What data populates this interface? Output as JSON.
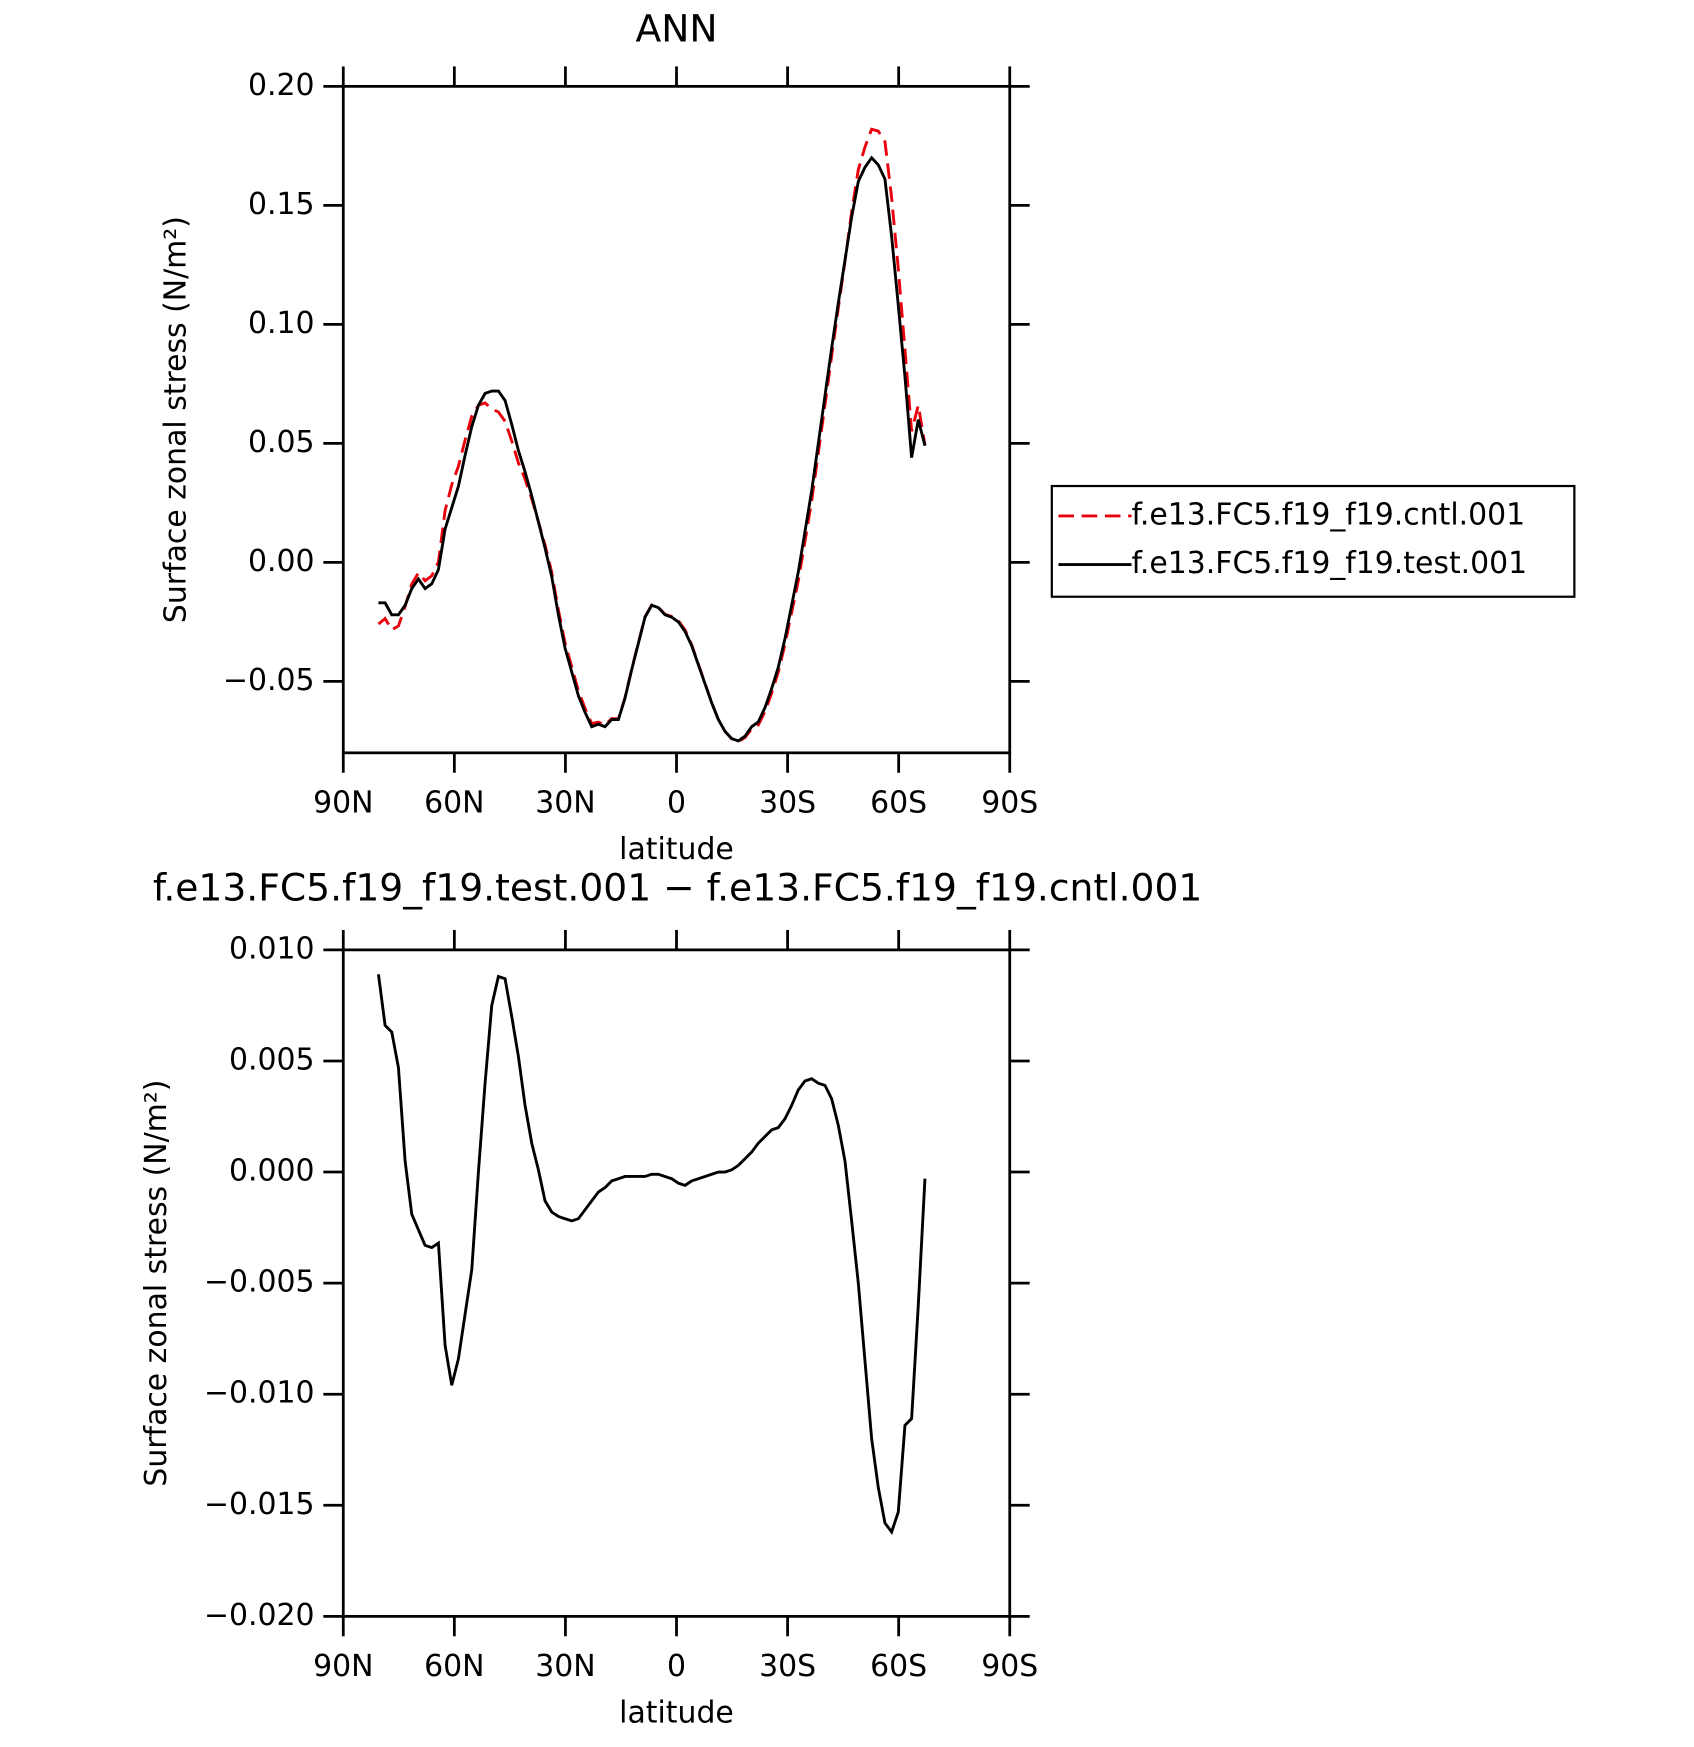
{
  "chart_data": [
    {
      "type": "line",
      "title": "ANN",
      "xlabel": "latitude",
      "ylabel": "Surface zonal stress (N/m²)",
      "x": [
        80.5,
        78.7,
        76.9,
        75.1,
        73.3,
        71.5,
        69.7,
        67.9,
        66.1,
        64.3,
        62.5,
        60.7,
        58.9,
        57.1,
        55.3,
        53.5,
        51.7,
        49.9,
        48.1,
        46.3,
        44.5,
        42.7,
        40.9,
        39.1,
        37.3,
        35.5,
        33.7,
        31.9,
        30.1,
        28.3,
        26.5,
        24.7,
        22.9,
        21.1,
        19.3,
        17.5,
        15.7,
        13.9,
        12.1,
        10.3,
        8.5,
        6.7,
        4.9,
        3.1,
        1.3,
        -0.5,
        -2.3,
        -4.1,
        -5.9,
        -7.7,
        -9.5,
        -11.3,
        -13.1,
        -14.9,
        -16.7,
        -18.5,
        -20.3,
        -22.1,
        -23.9,
        -25.7,
        -27.5,
        -29.3,
        -31.1,
        -32.9,
        -34.7,
        -36.5,
        -38.3,
        -40.1,
        -41.9,
        -43.7,
        -45.5,
        -47.3,
        -49.1,
        -50.9,
        -52.7,
        -54.5,
        -56.3,
        -58.1,
        -59.9,
        -61.7,
        -63.5,
        -65.3,
        -67.1
      ],
      "series": [
        {
          "name": "f.e13.FC5.f19_f19.cntl.001",
          "color": "#e8000b",
          "line_style": "dashed",
          "values": [
            -0.0259,
            -0.0236,
            -0.0283,
            -0.0267,
            -0.0185,
            -0.0091,
            -0.0044,
            -0.0077,
            -0.0056,
            0.0002,
            0.0218,
            0.0326,
            0.0404,
            0.0514,
            0.0614,
            0.066,
            0.067,
            0.0645,
            0.0632,
            0.0593,
            0.051,
            0.0418,
            0.035,
            0.0267,
            0.0171,
            0.0073,
            -0.0042,
            -0.02,
            -0.0339,
            -0.0438,
            -0.0539,
            -0.0613,
            -0.0677,
            -0.0671,
            -0.0683,
            -0.0656,
            -0.0657,
            -0.0568,
            -0.0448,
            -0.0338,
            -0.0228,
            -0.0179,
            -0.0189,
            -0.0218,
            -0.0227,
            -0.0245,
            -0.0284,
            -0.0346,
            -0.0427,
            -0.0508,
            -0.0589,
            -0.066,
            -0.071,
            -0.0741,
            -0.0753,
            -0.0736,
            -0.0699,
            -0.0683,
            -0.0626,
            -0.0549,
            -0.046,
            -0.0344,
            -0.021,
            -0.0077,
            0.0089,
            0.0258,
            0.046,
            0.0661,
            0.0867,
            0.1069,
            0.1265,
            0.1472,
            0.165,
            0.1745,
            0.182,
            0.1812,
            0.1768,
            0.1532,
            0.1233,
            0.0894,
            0.0551,
            0.066,
            0.0493
          ]
        },
        {
          "name": "f.e13.FC5.f19_f19.test.001",
          "color": "#000000",
          "line_style": "solid",
          "values": [
            -0.017,
            -0.017,
            -0.022,
            -0.022,
            -0.018,
            -0.011,
            -0.007,
            -0.011,
            -0.009,
            -0.003,
            0.014,
            0.023,
            0.032,
            0.045,
            0.057,
            0.066,
            0.071,
            0.072,
            0.072,
            0.068,
            0.058,
            0.047,
            0.038,
            0.028,
            0.017,
            0.006,
            -0.006,
            -0.022,
            -0.036,
            -0.046,
            -0.056,
            -0.063,
            -0.069,
            -0.068,
            -0.069,
            -0.066,
            -0.066,
            -0.057,
            -0.045,
            -0.034,
            -0.023,
            -0.018,
            -0.019,
            -0.022,
            -0.023,
            -0.025,
            -0.029,
            -0.035,
            -0.043,
            -0.051,
            -0.059,
            -0.066,
            -0.071,
            -0.074,
            -0.075,
            -0.073,
            -0.069,
            -0.067,
            -0.061,
            -0.053,
            -0.044,
            -0.032,
            -0.018,
            -0.004,
            0.013,
            0.03,
            0.05,
            0.07,
            0.09,
            0.109,
            0.127,
            0.145,
            0.16,
            0.166,
            0.17,
            0.167,
            0.161,
            0.137,
            0.108,
            0.078,
            0.044,
            0.06,
            0.049
          ]
        }
      ],
      "xlim": [
        90,
        -90
      ],
      "xticks": [
        {
          "value": 90,
          "label": "90N"
        },
        {
          "value": 60,
          "label": "60N"
        },
        {
          "value": 30,
          "label": "30N"
        },
        0,
        {
          "value": -30,
          "label": "30S"
        },
        {
          "value": -60,
          "label": "60S"
        },
        {
          "value": -90,
          "label": "90S"
        }
      ],
      "ylim": [
        -0.08,
        0.2
      ],
      "yticks": [
        {
          "value": 0.2,
          "label": "0.20"
        },
        {
          "value": 0.15,
          "label": "0.15"
        },
        {
          "value": 0.1,
          "label": "0.10"
        },
        {
          "value": 0.05,
          "label": "0.05"
        },
        {
          "value": 0,
          "label": "0.00"
        },
        {
          "value": -0.05,
          "label": "−0.05"
        }
      ],
      "legend": "right"
    },
    {
      "type": "line",
      "title": "f.e13.FC5.f19_f19.test.001 − f.e13.FC5.f19_f19.cntl.001",
      "xlabel": "latitude",
      "ylabel": "Surface zonal stress (N/m²)",
      "x": [
        80.5,
        78.7,
        76.9,
        75.1,
        73.3,
        71.5,
        69.7,
        67.9,
        66.1,
        64.3,
        62.5,
        60.7,
        58.9,
        57.1,
        55.3,
        53.5,
        51.7,
        49.9,
        48.1,
        46.3,
        44.5,
        42.7,
        40.9,
        39.1,
        37.3,
        35.5,
        33.7,
        31.9,
        30.1,
        28.3,
        26.5,
        24.7,
        22.9,
        21.1,
        19.3,
        17.5,
        15.7,
        13.9,
        12.1,
        10.3,
        8.5,
        6.7,
        4.9,
        3.1,
        1.3,
        -0.5,
        -2.3,
        -4.1,
        -5.9,
        -7.7,
        -9.5,
        -11.3,
        -13.1,
        -14.9,
        -16.7,
        -18.5,
        -20.3,
        -22.1,
        -23.9,
        -25.7,
        -27.5,
        -29.3,
        -31.1,
        -32.9,
        -34.7,
        -36.5,
        -38.3,
        -40.1,
        -41.9,
        -43.7,
        -45.5,
        -47.3,
        -49.1,
        -50.9,
        -52.7,
        -54.5,
        -56.3,
        -58.1,
        -59.9,
        -61.7,
        -63.5,
        -65.3,
        -67.1
      ],
      "series": [
        {
          "color": "#000000",
          "line_style": "solid",
          "values": [
            0.0089,
            0.0066,
            0.0063,
            0.0047,
            0.0005,
            -0.0019,
            -0.0026,
            -0.0033,
            -0.0034,
            -0.0032,
            -0.0078,
            -0.0096,
            -0.0084,
            -0.0064,
            -0.0044,
            0.0,
            0.004,
            0.0075,
            0.0088,
            0.0087,
            0.007,
            0.0052,
            0.003,
            0.0013,
            0.0001,
            -0.0013,
            -0.0018,
            -0.002,
            -0.0021,
            -0.0022,
            -0.0021,
            -0.0017,
            -0.0013,
            -0.0009,
            -0.0007,
            -0.0004,
            -0.0003,
            -0.0002,
            -0.0002,
            -0.0002,
            -0.0002,
            -0.0001,
            -0.0001,
            -0.0002,
            -0.0003,
            -0.0005,
            -0.0006,
            -0.0004,
            -0.0003,
            -0.0002,
            -0.0001,
            0.0,
            0.0,
            0.0001,
            0.0003,
            0.0006,
            0.0009,
            0.0013,
            0.0016,
            0.0019,
            0.002,
            0.0024,
            0.003,
            0.0037,
            0.0041,
            0.0042,
            0.004,
            0.0039,
            0.0033,
            0.0021,
            0.0005,
            -0.0022,
            -0.005,
            -0.0085,
            -0.012,
            -0.0142,
            -0.0158,
            -0.0162,
            -0.0153,
            -0.0114,
            -0.0111,
            -0.006,
            -0.0003
          ]
        }
      ],
      "xlim": [
        90,
        -90
      ],
      "xticks": [
        {
          "value": 90,
          "label": "90N"
        },
        {
          "value": 60,
          "label": "60N"
        },
        {
          "value": 30,
          "label": "30N"
        },
        0,
        {
          "value": -30,
          "label": "30S"
        },
        {
          "value": -60,
          "label": "60S"
        },
        {
          "value": -90,
          "label": "90S"
        }
      ],
      "ylim": [
        -0.02,
        0.01
      ],
      "yticks": [
        {
          "value": 0.01,
          "label": "0.010"
        },
        {
          "value": 0.005,
          "label": "0.005"
        },
        {
          "value": 0,
          "label": "0.000"
        },
        {
          "value": -0.005,
          "label": "−0.005"
        },
        {
          "value": -0.01,
          "label": "−0.010"
        },
        {
          "value": -0.015,
          "label": "−0.015"
        },
        {
          "value": -0.02,
          "label": "−0.020"
        }
      ]
    }
  ]
}
